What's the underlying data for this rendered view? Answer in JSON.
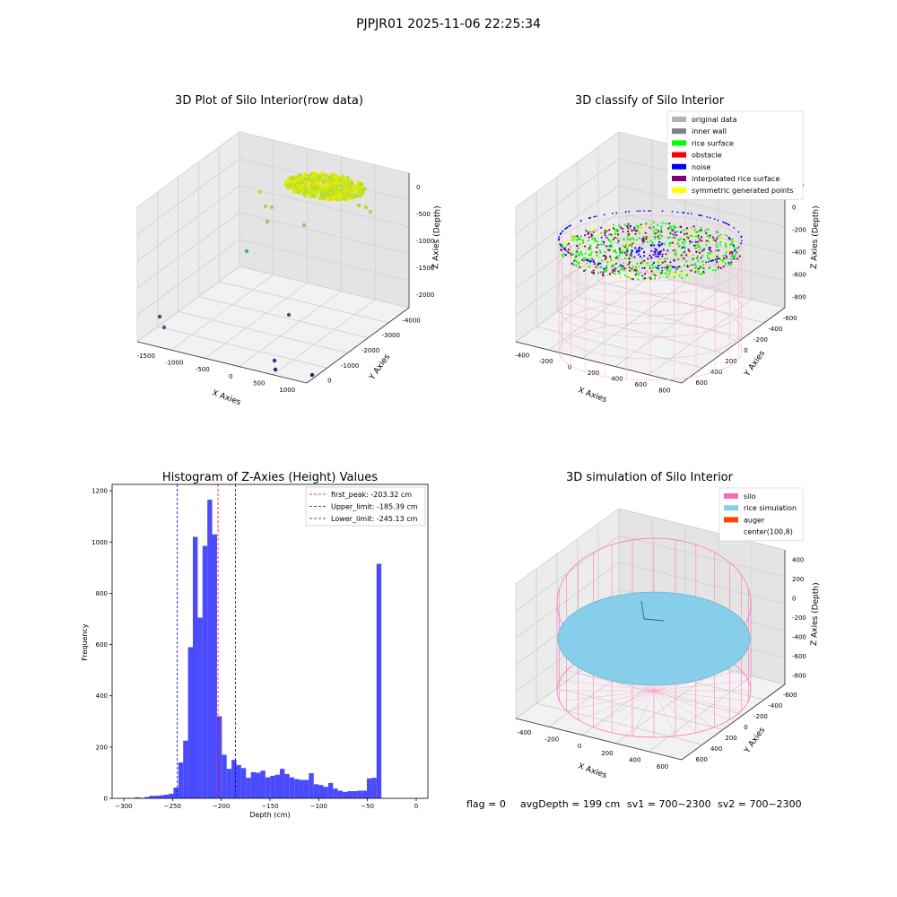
{
  "figure_title": "PJPJR01 2025-11-06 22:25:34",
  "footer": {
    "flag": "flag = 0",
    "avg_depth": "avgDepth = 199 cm",
    "sv1": "sv1 = 700~2300",
    "sv2": "sv2 = 700~2300"
  },
  "panels": {
    "raw": {
      "title": "3D Plot of Silo Interior(row data)",
      "xlabel": "X Axies",
      "ylabel": "Y Axies",
      "zlabel": "Z Axies (Depth)",
      "xticks": [
        "-1500",
        "-1000",
        "-500",
        "0",
        "500",
        "1000"
      ],
      "yticks": [
        "0",
        "-1000",
        "-2000",
        "-3000",
        "-4000"
      ],
      "zticks": [
        "0",
        "-500",
        "-1000",
        "-1500",
        "-2000"
      ]
    },
    "classify": {
      "title": "3D classify of Silo Interior",
      "xlabel": "X Axies",
      "ylabel": "Y Axies",
      "zlabel": "Z Axies (Depth)",
      "xticks": [
        "-400",
        "-200",
        "0",
        "200",
        "400",
        "600",
        "800"
      ],
      "yticks": [
        "600",
        "400",
        "200",
        "0",
        "-200",
        "-400",
        "-600"
      ],
      "zticks": [
        "200",
        "0",
        "-200",
        "-400",
        "-600",
        "-800"
      ],
      "legend": [
        {
          "label": "original data",
          "color": "#b3b3b3"
        },
        {
          "label": "inner wall",
          "color": "#808080"
        },
        {
          "label": "rice surface",
          "color": "#00ff00"
        },
        {
          "label": "obstacle",
          "color": "#ff0000"
        },
        {
          "label": "noise",
          "color": "#0000ff"
        },
        {
          "label": "interpolated rice surface",
          "color": "#800080"
        },
        {
          "label": "symmetric generated points",
          "color": "#ffff00"
        }
      ]
    },
    "simulation": {
      "title": "3D simulation of Silo Interior",
      "xlabel": "X Axies",
      "ylabel": "Y Axies",
      "zlabel": "Z Axies (Depth)",
      "xticks": [
        "-400",
        "-200",
        "0",
        "200",
        "400",
        "600"
      ],
      "yticks": [
        "600",
        "400",
        "200",
        "0",
        "-200",
        "-400",
        "-600"
      ],
      "zticks": [
        "400",
        "200",
        "0",
        "-200",
        "-400",
        "-600",
        "-800"
      ],
      "legend": [
        {
          "label": "silo",
          "color": "#ff69b4"
        },
        {
          "label": "rice simulation",
          "color": "#87ceeb"
        },
        {
          "label": "auger",
          "color": "#ff4500"
        },
        {
          "label": "center(100,8)",
          "color": "#ffffff"
        }
      ]
    }
  },
  "chart_data": {
    "type": "bar",
    "title": "Histogram of Z-Axies (Height) Values",
    "xlabel": "Depth (cm)",
    "ylabel": "Frequency",
    "xlim": [
      -312,
      12
    ],
    "ylim": [
      0,
      1225
    ],
    "xticks": [
      -300,
      -250,
      -200,
      -150,
      -100,
      -50,
      0
    ],
    "yticks": [
      0,
      200,
      400,
      600,
      800,
      1000,
      1200
    ],
    "bin_width": 4.96,
    "bins_start": [
      -298.6,
      -293.64,
      -288.68,
      -283.72,
      -278.76,
      -273.8,
      -268.84,
      -263.88,
      -258.92,
      -253.96,
      -249.0,
      -244.04,
      -239.08,
      -234.12,
      -229.16,
      -224.2,
      -219.24,
      -214.28,
      -209.32,
      -204.36,
      -199.4,
      -194.44,
      -189.48,
      -184.52,
      -179.56,
      -174.6,
      -169.64,
      -164.68,
      -159.72,
      -154.76,
      -149.8,
      -144.84,
      -139.88,
      -134.92,
      -129.96,
      -125.0,
      -120.04,
      -115.08,
      -110.12,
      -105.16,
      -100.2,
      -95.24,
      -90.28,
      -85.32,
      -80.36,
      -75.4,
      -70.44,
      -65.48,
      -60.52,
      -55.56,
      -50.6,
      -45.64,
      -40.68,
      -35.72,
      -30.76,
      -25.8,
      -20.84,
      -15.88,
      -10.92,
      -5.96
    ],
    "values": [
      1,
      0,
      4,
      2,
      5,
      10,
      10,
      12,
      14,
      18,
      42,
      140,
      225,
      590,
      1020,
      705,
      985,
      1165,
      1030,
      320,
      170,
      115,
      150,
      130,
      118,
      80,
      102,
      100,
      108,
      82,
      88,
      92,
      115,
      95,
      82,
      75,
      72,
      72,
      98,
      55,
      52,
      45,
      60,
      38,
      30,
      25,
      28,
      28,
      30,
      30,
      78,
      80,
      915,
      0,
      0,
      0,
      0,
      0,
      0,
      0
    ],
    "lines": [
      {
        "name": "first_peak: -203.32 cm",
        "x": -203.32,
        "color": "#ff0000"
      },
      {
        "name": "Upper_limit: -185.39 cm",
        "x": -185.39,
        "color": "#0000cc"
      },
      {
        "name": "Lower_limit: -245.13 cm",
        "x": -245.13,
        "color": "#0000cc"
      }
    ],
    "bar_color": "#4a4aff",
    "legend_position": "top-right"
  }
}
